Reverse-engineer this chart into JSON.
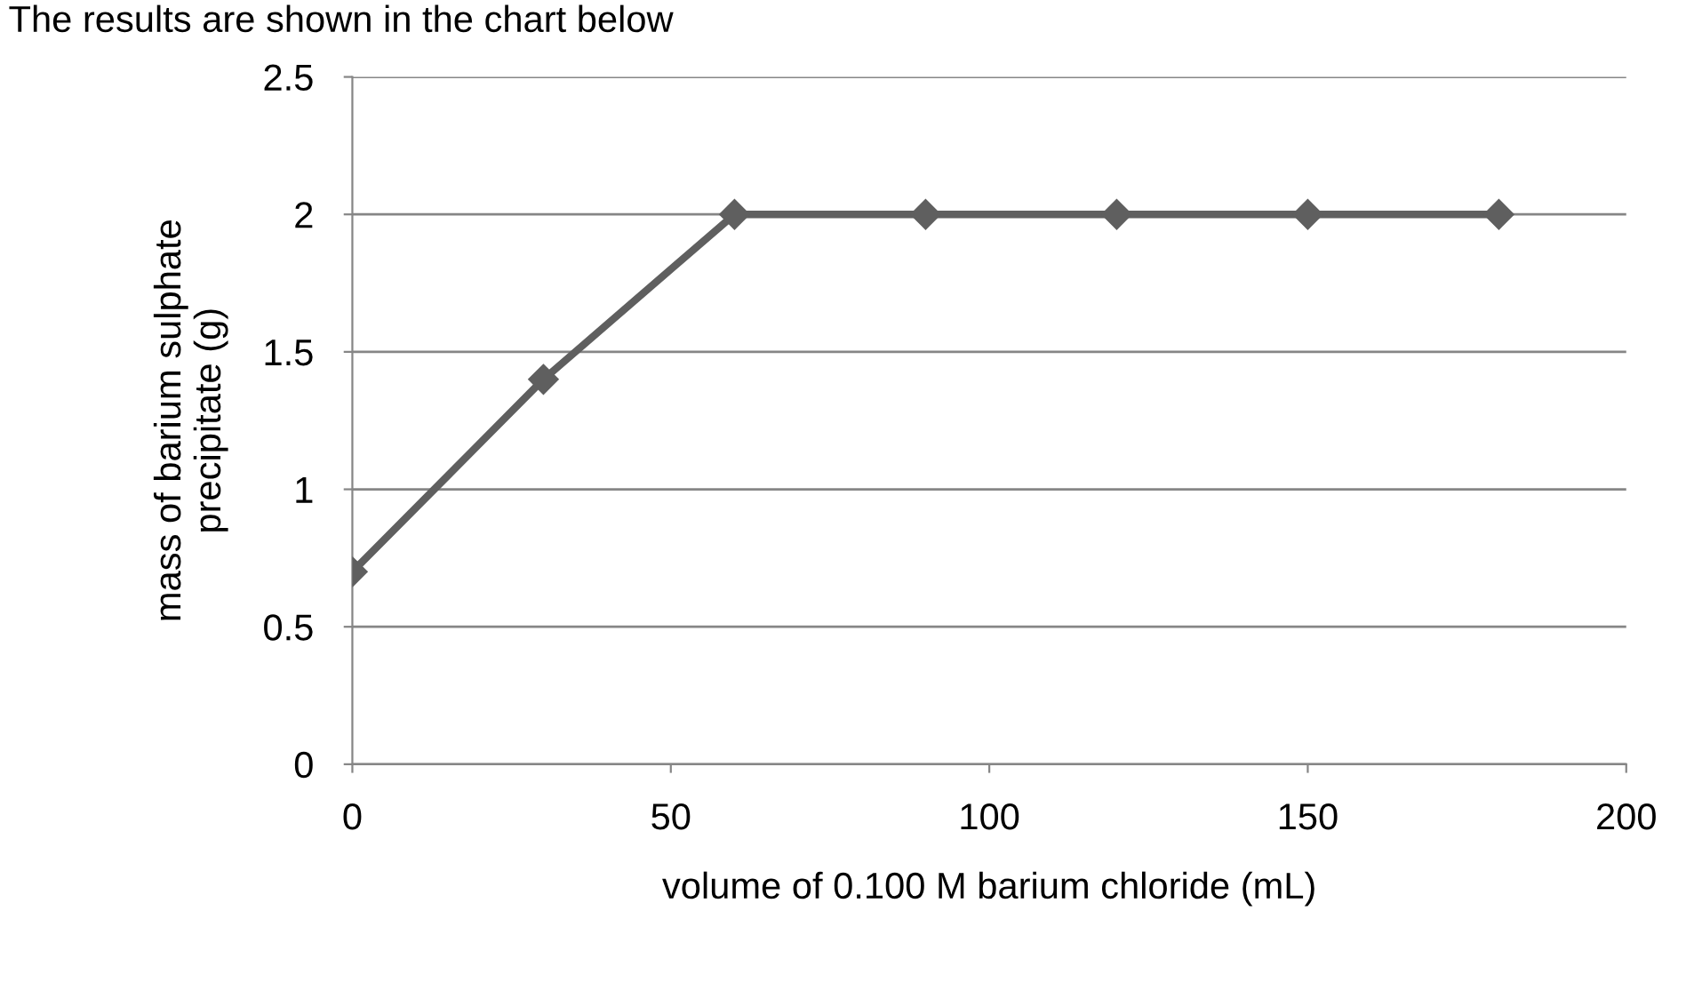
{
  "chart_data": {
    "type": "line",
    "xlabel": "volume of 0.100 M barium chloride (mL)",
    "ylabel": "mass of barium sulphate\nprecipitate (g)",
    "annotations": [
      "The results are shown in the chart below"
    ],
    "x": [
      0,
      30,
      60,
      90,
      120,
      150,
      180
    ],
    "series": [
      {
        "color": "#5f5f5f",
        "values": [
          0.7,
          1.4,
          2,
          2,
          2,
          2,
          2
        ]
      }
    ],
    "xlim": [
      0,
      200
    ],
    "xticks": [
      0,
      50,
      100,
      150,
      200
    ],
    "ylim": [
      0,
      2.5
    ],
    "yticks": [
      0,
      0.5,
      1,
      1.5,
      2,
      2.5
    ],
    "grid": "y",
    "legend": false,
    "marker": "diamond",
    "line_style": "solid"
  }
}
